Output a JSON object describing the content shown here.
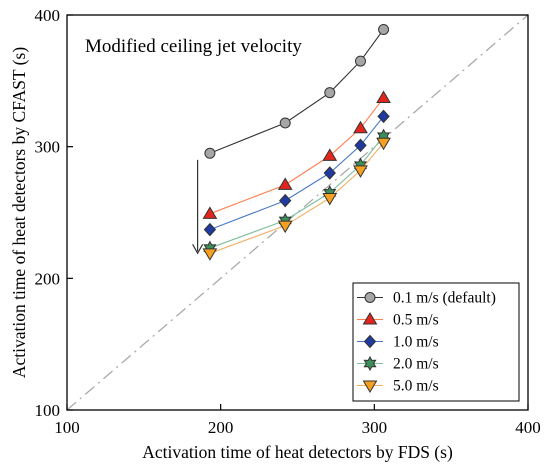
{
  "chart_data": {
    "type": "line",
    "title": "",
    "annotation": "Modified ceiling jet velocity",
    "xlabel": "Activation time of heat detectors by FDS (s)",
    "ylabel": "Activation time of heat detectors by CFAST (s)",
    "xlim": [
      100,
      400
    ],
    "ylim": [
      100,
      400
    ],
    "xticks": [
      "100",
      "200",
      "300",
      "400"
    ],
    "yticks": [
      "100",
      "200",
      "300",
      "400"
    ],
    "x": [
      193,
      242,
      271,
      291,
      306
    ],
    "series": [
      {
        "name": "0.1 m/s (default)",
        "values": [
          295,
          318,
          341,
          365,
          389
        ],
        "color": "#333333",
        "fill": "#a6a6a6",
        "marker": "circle"
      },
      {
        "name": "0.5 m/s",
        "values": [
          249,
          271,
          293,
          314,
          337
        ],
        "color": "#ff7f50",
        "fill": "#e2261e",
        "marker": "triangle-up"
      },
      {
        "name": "1.0 m/s",
        "values": [
          237,
          259,
          280,
          301,
          323
        ],
        "color": "#4a78c8",
        "fill": "#1f3aa0",
        "marker": "diamond"
      },
      {
        "name": "2.0 m/s",
        "values": [
          223,
          244,
          265,
          286,
          308
        ],
        "color": "#7fbf9a",
        "fill": "#3c8f5a",
        "marker": "star"
      },
      {
        "name": "5.0 m/s",
        "values": [
          219,
          240,
          261,
          282,
          303
        ],
        "color": "#f2b067",
        "fill": "#f5a020",
        "marker": "triangle-down"
      }
    ],
    "reference_line": {
      "from": [
        100,
        100
      ],
      "to": [
        400,
        400
      ],
      "style": "dash-dot",
      "color": "#aaaaaa"
    },
    "arrow": {
      "from": [
        185,
        290
      ],
      "to": [
        185,
        219
      ]
    },
    "legend_position": "bottom-right",
    "grid": false
  }
}
